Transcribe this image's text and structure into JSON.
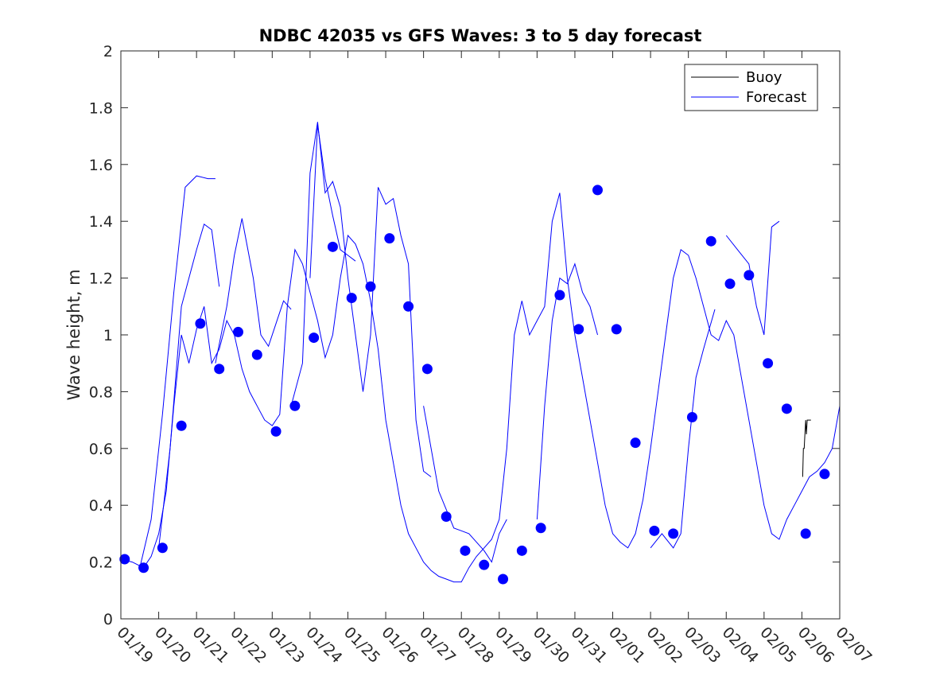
{
  "chart_data": {
    "type": "line",
    "title": "NDBC 42035 vs GFS Waves: 3 to 5 day forecast",
    "xlabel": "",
    "ylabel": "Wave height, m",
    "ylim": [
      0,
      2
    ],
    "xlim": [
      0,
      19
    ],
    "y_ticks": [
      0,
      0.2,
      0.4,
      0.6,
      0.8,
      1,
      1.2,
      1.4,
      1.6,
      1.8,
      2
    ],
    "y_tick_labels": [
      "0",
      "0.2",
      "0.4",
      "0.6",
      "0.8",
      "1",
      "1.2",
      "1.4",
      "1.6",
      "1.8",
      "2"
    ],
    "x_tick_labels": [
      "01/19",
      "01/20",
      "01/21",
      "01/22",
      "01/23",
      "01/24",
      "01/25",
      "01/26",
      "01/27",
      "01/28",
      "01/29",
      "01/30",
      "01/31",
      "02/01",
      "02/02",
      "02/03",
      "02/04",
      "02/05",
      "02/06",
      "02/07"
    ],
    "legend": {
      "position": "top-right",
      "entries": [
        {
          "label": "Buoy",
          "color": "#000000"
        },
        {
          "label": "Forecast",
          "color": "#0000ff"
        }
      ]
    },
    "forecast_color": "#0000ff",
    "buoy_color": "#000000",
    "series": [
      {
        "name": "Forecast",
        "kind": "markers",
        "x": [
          0.1,
          0.6,
          1.1,
          1.6,
          2.1,
          2.6,
          3.1,
          3.6,
          4.1,
          4.6,
          5.1,
          5.6,
          6.1,
          6.6,
          7.1,
          7.6,
          8.1,
          8.6,
          9.1,
          9.6,
          10.1,
          10.6,
          11.1,
          11.6,
          12.1,
          12.6,
          13.1,
          13.6,
          14.1,
          14.6,
          15.1,
          15.6,
          16.1,
          16.6,
          17.1,
          17.6,
          18.1,
          18.6
        ],
        "y": [
          0.21,
          0.18,
          0.25,
          0.68,
          1.04,
          0.88,
          1.01,
          0.93,
          0.66,
          0.75,
          0.99,
          1.31,
          1.13,
          1.17,
          1.34,
          1.1,
          0.88,
          0.36,
          0.24,
          0.19,
          0.14,
          0.24,
          0.32,
          1.14,
          1.02,
          1.51,
          1.02,
          0.62,
          0.31,
          0.3,
          0.71,
          1.33,
          1.18,
          1.21,
          0.9,
          0.74,
          0.3,
          0.51
        ]
      },
      {
        "name": "Buoy",
        "kind": "line",
        "x": [
          18.02,
          18.04,
          18.06,
          18.08,
          18.1,
          18.12,
          18.14,
          18.16,
          18.18,
          18.2,
          18.22,
          18.24
        ],
        "y": [
          0.5,
          0.6,
          0.6,
          0.65,
          0.7,
          0.65,
          0.7,
          0.7,
          0.7,
          0.7,
          0.7,
          0.7
        ]
      },
      {
        "name": "Forecast",
        "kind": "line",
        "x": [
          0,
          0.3,
          0.6,
          0.8,
          1.0,
          1.2,
          1.4,
          1.6,
          1.8,
          2.0,
          2.2,
          2.4,
          2.6,
          2.8,
          3.0,
          3.2,
          3.4,
          3.6,
          3.8,
          4.0,
          4.2,
          4.4,
          4.6,
          4.8,
          5.0,
          5.2,
          5.4,
          5.6,
          5.8,
          6.0,
          6.2,
          6.4,
          6.6,
          6.8,
          7.0,
          7.2,
          7.4,
          7.6,
          7.8,
          8.0,
          8.2,
          8.4,
          8.6,
          8.8,
          9.0,
          9.2,
          9.4,
          9.6,
          9.8,
          10.0,
          10.2,
          10.4,
          10.6,
          10.8,
          11.0,
          11.2,
          11.4,
          11.6,
          11.8,
          12.0,
          12.2,
          12.4,
          12.6,
          12.8,
          13.0,
          13.2,
          13.4,
          13.6,
          13.8,
          14.0,
          14.2,
          14.4,
          14.6,
          14.8,
          15.0,
          15.2,
          15.4,
          15.6,
          15.8,
          16.0,
          16.2,
          16.4,
          16.6,
          16.8,
          17.0,
          17.2,
          17.4,
          17.6,
          17.8,
          18.0,
          18.2,
          18.4,
          18.6,
          18.8,
          19.0
        ],
        "y": [
          0.21,
          0.2,
          0.18,
          0.22,
          0.3,
          0.45,
          0.75,
          1.0,
          0.9,
          1.02,
          1.1,
          0.9,
          0.95,
          1.05,
          1.0,
          0.88,
          0.8,
          0.75,
          0.7,
          0.68,
          0.72,
          1.1,
          1.3,
          1.25,
          1.15,
          1.05,
          0.92,
          1.0,
          1.2,
          1.35,
          1.32,
          1.25,
          1.12,
          0.95,
          0.7,
          0.55,
          0.4,
          0.3,
          0.25,
          0.2,
          0.17,
          0.15,
          0.14,
          0.13,
          0.13,
          0.18,
          0.22,
          0.25,
          0.28,
          0.35,
          0.6,
          1.0,
          1.12,
          1.0,
          1.05,
          1.1,
          1.4,
          1.5,
          1.2,
          1.0,
          0.85,
          0.7,
          0.55,
          0.4,
          0.3,
          0.27,
          0.25,
          0.3,
          0.42,
          0.6,
          0.8,
          1.0,
          1.2,
          1.3,
          1.28,
          1.2,
          1.1,
          1.0,
          0.98,
          1.05,
          1.0,
          0.85,
          0.7,
          0.55,
          0.4,
          0.3,
          0.28,
          0.35,
          0.4,
          0.45,
          0.5,
          0.52,
          0.55,
          0.6,
          0.75
        ]
      },
      {
        "name": "Forecast",
        "kind": "line",
        "x": [
          0.5,
          0.8,
          1.1,
          1.4,
          1.7,
          2.0,
          2.3,
          2.5
        ],
        "y": [
          0.18,
          0.35,
          0.72,
          1.15,
          1.52,
          1.56,
          1.55,
          1.55
        ]
      },
      {
        "name": "Forecast",
        "kind": "line",
        "x": [
          1.0,
          1.3,
          1.6,
          1.8,
          2.0,
          2.2,
          2.4,
          2.6
        ],
        "y": [
          0.25,
          0.6,
          1.1,
          1.2,
          1.3,
          1.39,
          1.37,
          1.17
        ]
      },
      {
        "name": "Forecast",
        "kind": "line",
        "x": [
          2.5,
          2.8,
          3.0,
          3.2,
          3.5,
          3.7,
          3.9,
          4.1,
          4.3,
          4.5
        ],
        "y": [
          0.9,
          1.1,
          1.28,
          1.41,
          1.2,
          1.0,
          0.96,
          1.04,
          1.12,
          1.09
        ]
      },
      {
        "name": "Forecast",
        "kind": "line",
        "x": [
          4.5,
          4.8,
          5.0,
          5.2,
          5.4,
          5.6,
          5.8,
          6.0,
          6.2,
          6.4,
          6.6,
          6.8,
          7.0,
          7.2,
          7.4,
          7.6,
          7.8,
          8.0,
          8.2
        ],
        "y": [
          0.75,
          0.9,
          1.57,
          1.75,
          1.5,
          1.54,
          1.45,
          1.2,
          1.0,
          0.8,
          1.0,
          1.52,
          1.46,
          1.48,
          1.35,
          1.25,
          0.7,
          0.52,
          0.5
        ]
      },
      {
        "name": "Forecast",
        "kind": "line",
        "x": [
          5.0,
          5.2,
          5.4,
          5.6,
          5.8,
          6.0,
          6.2
        ],
        "y": [
          1.2,
          1.74,
          1.55,
          1.42,
          1.3,
          1.28,
          1.26
        ]
      },
      {
        "name": "Forecast",
        "kind": "line",
        "x": [
          8.0,
          8.4,
          8.8,
          9.0,
          9.2,
          9.4,
          9.6,
          9.8,
          10.0,
          10.2
        ],
        "y": [
          0.75,
          0.45,
          0.32,
          0.31,
          0.3,
          0.27,
          0.24,
          0.2,
          0.3,
          0.35
        ]
      },
      {
        "name": "Forecast",
        "kind": "line",
        "x": [
          11.0,
          11.2,
          11.4,
          11.6,
          11.8,
          12.0,
          12.2,
          12.4,
          12.6
        ],
        "y": [
          0.35,
          0.75,
          1.05,
          1.2,
          1.18,
          1.25,
          1.15,
          1.1,
          1.0
        ]
      },
      {
        "name": "Forecast",
        "kind": "line",
        "x": [
          14.0,
          14.3,
          14.6,
          14.8,
          15.0,
          15.2,
          15.4,
          15.7
        ],
        "y": [
          0.25,
          0.3,
          0.25,
          0.3,
          0.6,
          0.85,
          0.95,
          1.09
        ]
      },
      {
        "name": "Forecast",
        "kind": "line",
        "x": [
          16.0,
          16.3,
          16.6,
          16.8,
          17.0,
          17.2,
          17.4
        ],
        "y": [
          1.35,
          1.3,
          1.25,
          1.1,
          1.0,
          1.38,
          1.4
        ]
      }
    ]
  }
}
